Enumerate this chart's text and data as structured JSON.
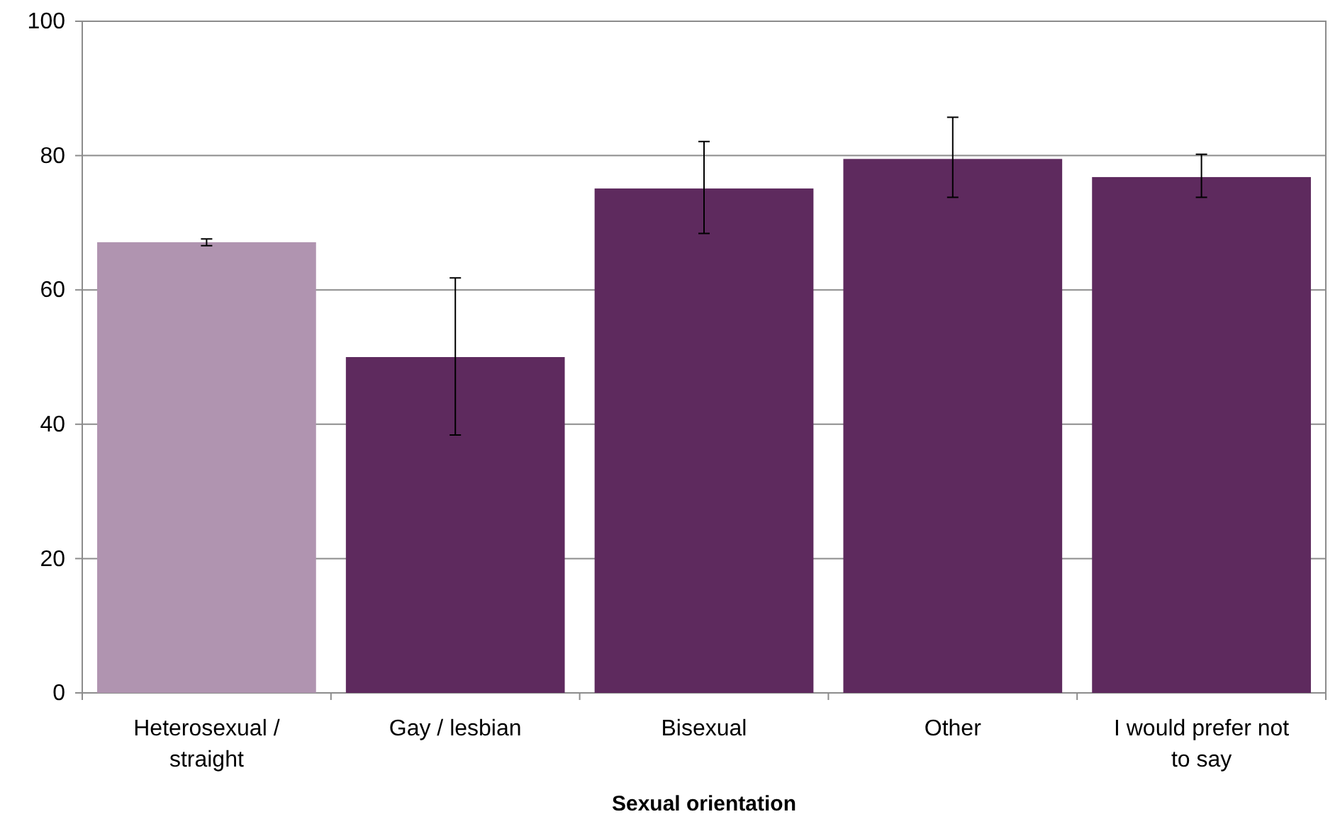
{
  "chart_data": {
    "type": "bar",
    "xlabel": "Sexual orientation",
    "categories": [
      "Heterosexual / straight",
      "Gay / lesbian",
      "Bisexual",
      "Other",
      "I would prefer not to say"
    ],
    "values": [
      67.1,
      50.0,
      75.1,
      79.5,
      76.8
    ],
    "colors": [
      "#b094b0",
      "#5e2a5e",
      "#5e2a5e",
      "#5e2a5e",
      "#5e2a5e"
    ],
    "errors": [
      [
        66.6,
        67.6
      ],
      [
        38.4,
        61.8
      ],
      [
        68.4,
        82.1
      ],
      [
        73.8,
        85.7
      ],
      [
        73.8,
        80.2
      ]
    ],
    "ylim": [
      0,
      100
    ],
    "yticks": [
      0,
      20,
      40,
      60,
      80,
      100
    ],
    "grid": "y"
  }
}
